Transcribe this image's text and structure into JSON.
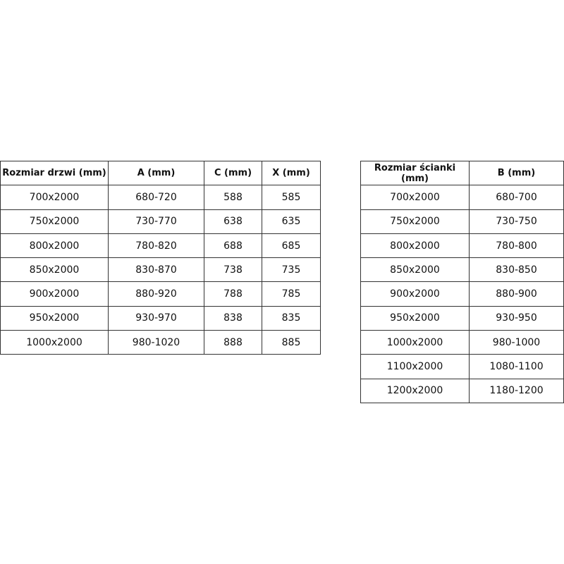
{
  "door_table": {
    "headers": [
      "Rozmiar drzwi (mm)",
      "A (mm)",
      "C (mm)",
      "X (mm)"
    ],
    "rows": [
      [
        "700x2000",
        "680-720",
        "588",
        "585"
      ],
      [
        "750x2000",
        "730-770",
        "638",
        "635"
      ],
      [
        "800x2000",
        "780-820",
        "688",
        "685"
      ],
      [
        "850x2000",
        "830-870",
        "738",
        "735"
      ],
      [
        "900x2000",
        "880-920",
        "788",
        "785"
      ],
      [
        "950x2000",
        "930-970",
        "838",
        "835"
      ],
      [
        "1000x2000",
        "980-1020",
        "888",
        "885"
      ]
    ]
  },
  "wall_table": {
    "headers": [
      "Rozmiar ścianki (mm)",
      "B (mm)"
    ],
    "rows": [
      [
        "700x2000",
        "680-700"
      ],
      [
        "750x2000",
        "730-750"
      ],
      [
        "800x2000",
        "780-800"
      ],
      [
        "850x2000",
        "830-850"
      ],
      [
        "900x2000",
        "880-900"
      ],
      [
        "950x2000",
        "930-950"
      ],
      [
        "1000x2000",
        "980-1000"
      ],
      [
        "1100x2000",
        "1080-1100"
      ],
      [
        "1200x2000",
        "1180-1200"
      ]
    ]
  }
}
